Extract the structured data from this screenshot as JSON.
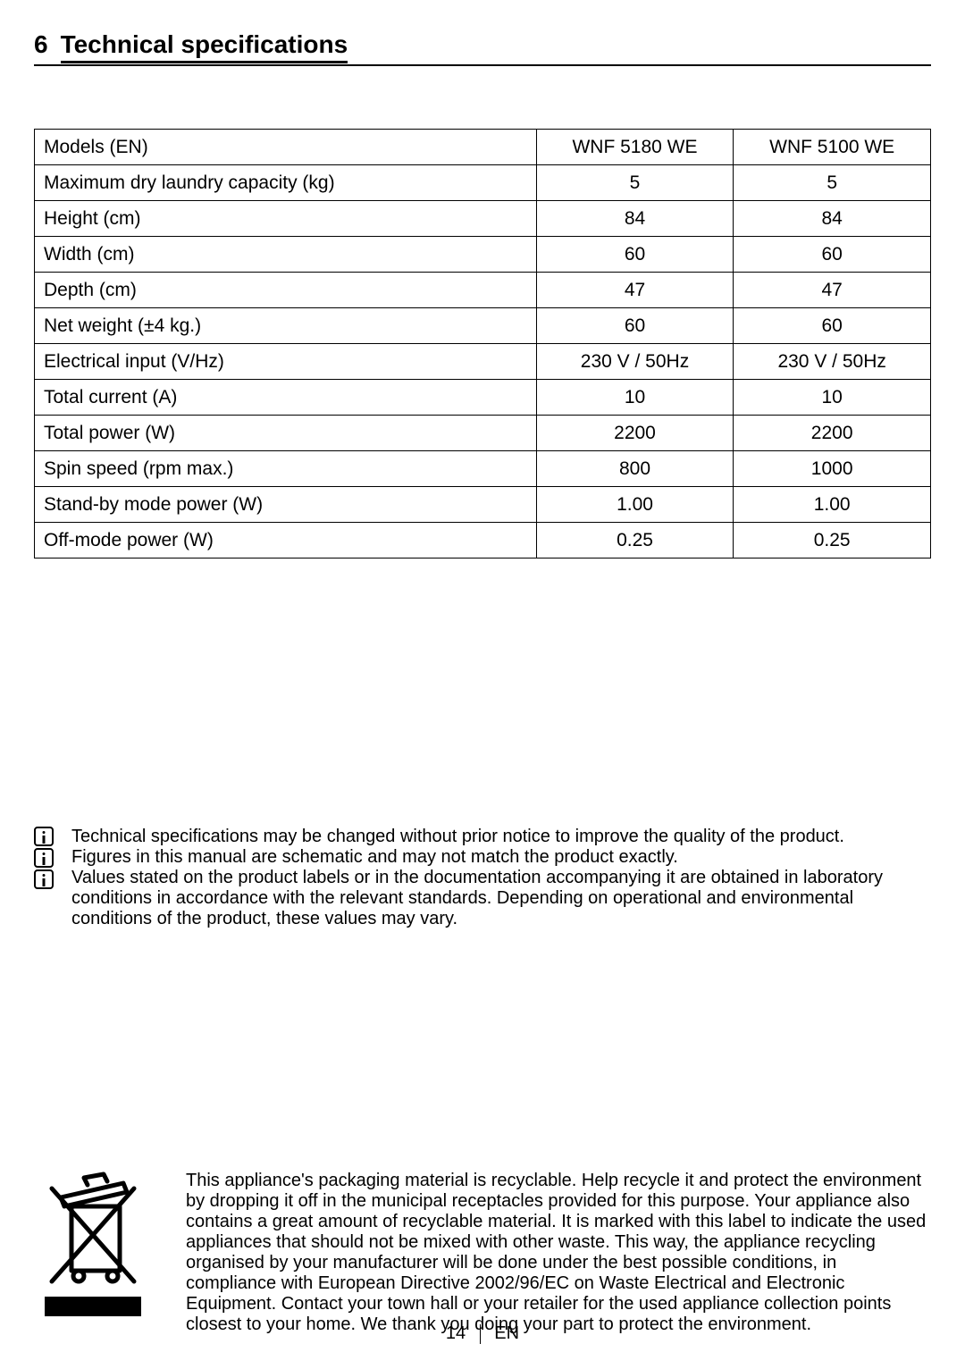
{
  "heading": {
    "number": "6",
    "title": "Technical specifications"
  },
  "spec_table": {
    "columns": [
      "",
      "WNF 5180 WE",
      "WNF 5100 WE"
    ],
    "rows": [
      [
        "Models (EN)",
        "WNF 5180 WE",
        "WNF 5100 WE"
      ],
      [
        "Maximum dry laundry capacity (kg)",
        "5",
        "5"
      ],
      [
        "Height (cm)",
        "84",
        "84"
      ],
      [
        "Width (cm)",
        "60",
        "60"
      ],
      [
        "Depth (cm)",
        "47",
        "47"
      ],
      [
        "Net weight (±4 kg.)",
        "60",
        "60"
      ],
      [
        "Electrical input (V/Hz)",
        "230 V / 50Hz",
        "230 V / 50Hz"
      ],
      [
        "Total current (A)",
        "10",
        "10"
      ],
      [
        "Total power (W)",
        "2200",
        "2200"
      ],
      [
        "Spin speed (rpm max.)",
        "800",
        "1000"
      ],
      [
        "Stand-by mode power (W)",
        "1.00",
        "1.00"
      ],
      [
        "Off-mode power (W)",
        "0.25",
        "0.25"
      ]
    ]
  },
  "notes": {
    "items": [
      "Technical specifications may be changed without prior notice to improve the quality of the product.",
      "Figures in this manual are schematic and may not match the product exactly.",
      "Values stated on the product labels or in the documentation accompanying it are obtained in laboratory conditions in accordance with the relevant standards. Depending on operational and environmental conditions of the product, these values may vary."
    ]
  },
  "recycle": {
    "text": "This appliance's packaging material is recyclable. Help recycle it and protect the environment by dropping it off in the municipal receptacles provided for this purpose. Your appliance also contains a great amount of recyclable material. It is marked with this label to indicate the used appliances that should not be mixed with other waste. This way, the appliance recycling organised by your manufacturer will be done under the best possible conditions, in compliance with European Directive 2002/96/EC on Waste Electrical and Electronic Equipment. Contact your town hall or your retailer for the used appliance collection points closest to your home.  We thank you doing your part to protect the environment."
  },
  "footer": {
    "page_number": "14",
    "lang": "EN"
  }
}
